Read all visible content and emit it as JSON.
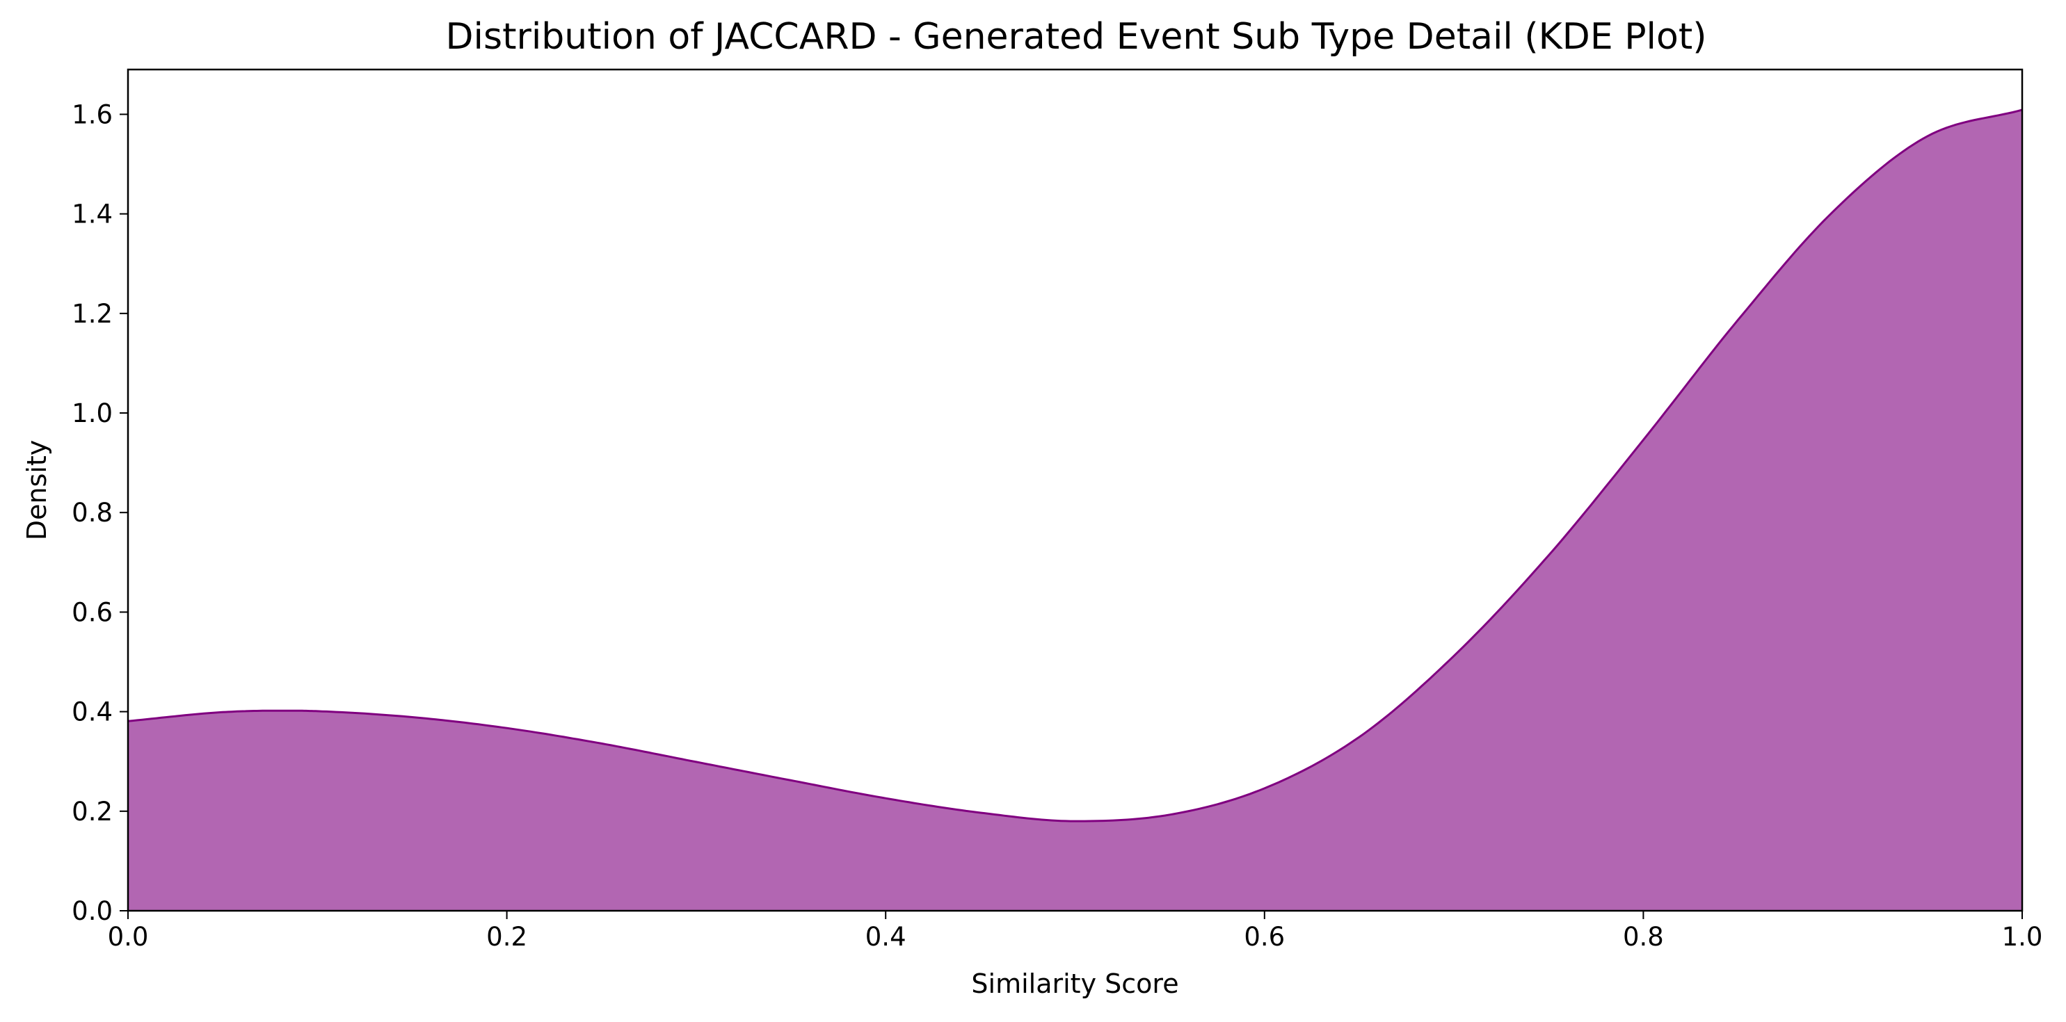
{
  "chart_data": {
    "type": "area",
    "title": "Distribution of JACCARD - Generated Event Sub Type Detail (KDE Plot)",
    "xlabel": "Similarity Score",
    "ylabel": "Density",
    "xlim": [
      0.0,
      1.0
    ],
    "ylim": [
      0.0,
      1.69
    ],
    "xticks": [
      "0.0",
      "0.2",
      "0.4",
      "0.6",
      "0.8",
      "1.0"
    ],
    "yticks": [
      "0.0",
      "0.2",
      "0.4",
      "0.6",
      "0.8",
      "1.0",
      "1.2",
      "1.4",
      "1.6"
    ],
    "grid": false,
    "legend": "none",
    "series": [
      {
        "x": [
          0.0,
          0.05,
          0.08,
          0.1,
          0.15,
          0.2,
          0.25,
          0.3,
          0.35,
          0.4,
          0.45,
          0.5,
          0.55,
          0.6,
          0.65,
          0.7,
          0.75,
          0.8,
          0.85,
          0.9,
          0.95,
          1.0
        ],
        "y": [
          0.381,
          0.399,
          0.402,
          0.401,
          0.389,
          0.367,
          0.336,
          0.299,
          0.262,
          0.226,
          0.197,
          0.18,
          0.193,
          0.246,
          0.349,
          0.512,
          0.714,
          0.946,
          1.187,
          1.404,
          1.556,
          1.609
        ]
      }
    ],
    "colors": {
      "fill": "#b266b2",
      "line": "#800080"
    }
  }
}
